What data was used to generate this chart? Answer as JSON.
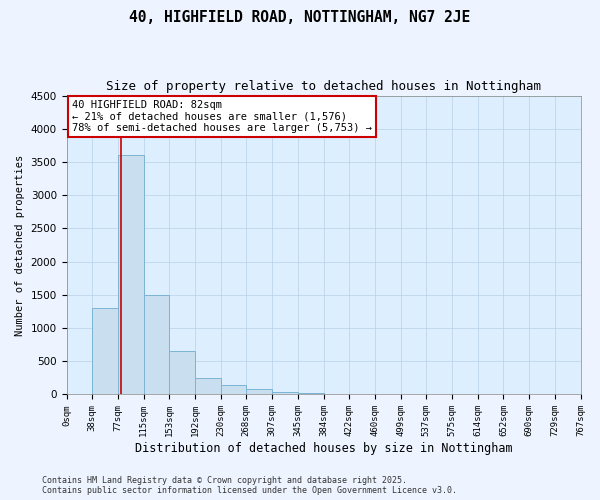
{
  "title": "40, HIGHFIELD ROAD, NOTTINGHAM, NG7 2JE",
  "subtitle": "Size of property relative to detached houses in Nottingham",
  "xlabel": "Distribution of detached houses by size in Nottingham",
  "ylabel": "Number of detached properties",
  "bar_values": [
    0,
    1300,
    3600,
    1500,
    650,
    250,
    150,
    80,
    40,
    20,
    10,
    5,
    3,
    2,
    1,
    1,
    0,
    0,
    0,
    0
  ],
  "bin_edges": [
    0,
    38,
    77,
    115,
    153,
    192,
    230,
    268,
    307,
    345,
    384,
    422,
    460,
    499,
    537,
    575,
    614,
    652,
    690,
    729,
    767
  ],
  "bar_color": "#c9dff0",
  "bar_edge_color": "#7ab4d4",
  "property_line_x": 82,
  "annotation_text": "40 HIGHFIELD ROAD: 82sqm\n← 21% of detached houses are smaller (1,576)\n78% of semi-detached houses are larger (5,753) →",
  "annotation_box_color": "#ffffff",
  "annotation_box_edge_color": "#cc0000",
  "property_line_color": "#cc0000",
  "ylim": [
    0,
    4500
  ],
  "xlim": [
    0,
    767
  ],
  "grid_color": "#b8d0e8",
  "bg_color": "#ddeeff",
  "fig_bg_color": "#eef4ff",
  "footer_line1": "Contains HM Land Registry data © Crown copyright and database right 2025.",
  "footer_line2": "Contains public sector information licensed under the Open Government Licence v3.0.",
  "title_fontsize": 10.5,
  "subtitle_fontsize": 9,
  "xlabel_fontsize": 8.5,
  "ylabel_fontsize": 7.5,
  "tick_fontsize": 6.5,
  "annotation_fontsize": 7.5,
  "footer_fontsize": 6
}
